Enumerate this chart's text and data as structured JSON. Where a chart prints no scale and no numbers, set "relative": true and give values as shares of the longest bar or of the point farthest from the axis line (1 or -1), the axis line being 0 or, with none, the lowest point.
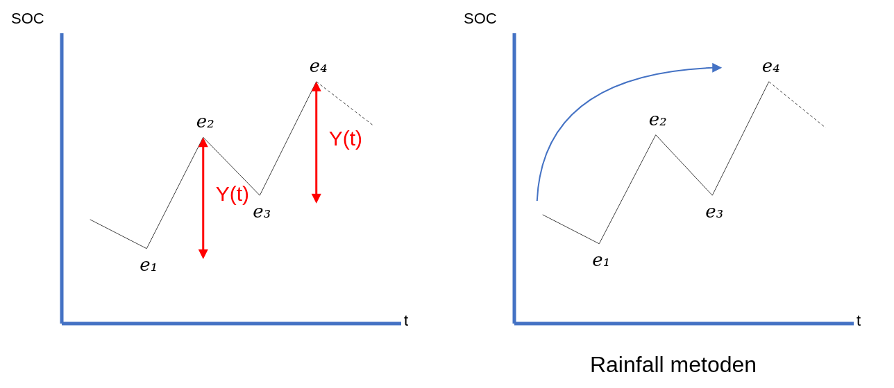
{
  "chart_data": [
    {
      "type": "line",
      "relative": true,
      "ylabel": "SOC",
      "xlabel": "t",
      "categories": [
        null,
        null,
        null,
        null,
        null,
        null
      ],
      "series": [
        {
          "color": "#404040",
          "line_style": "solid",
          "values": [
            0.43,
            0.31,
            0.77,
            0.53,
            1,
            null
          ]
        },
        {
          "color": "#404040",
          "line_style": "dashed",
          "values": [
            null,
            null,
            null,
            null,
            1,
            0.82
          ]
        }
      ],
      "annotations": [
        {
          "text": "e₁",
          "y": 0.31
        },
        {
          "text": "e₂",
          "y": 0.77
        },
        {
          "text": "e₃",
          "y": 0.53
        },
        {
          "text": "e₄",
          "y": 1
        },
        "Y(t)",
        "Y(t)"
      ]
    },
    {
      "type": "line",
      "relative": true,
      "ylabel": "SOC",
      "xlabel": "t",
      "title": "Rainfall metoden",
      "categories": [
        null,
        null,
        null,
        null,
        null,
        null
      ],
      "series": [
        {
          "color": "#404040",
          "line_style": "solid",
          "values": [
            0.45,
            0.33,
            0.78,
            0.53,
            1,
            null
          ]
        },
        {
          "color": "#404040",
          "line_style": "dashed",
          "values": [
            null,
            null,
            null,
            null,
            1,
            0.81
          ]
        }
      ],
      "annotations": [
        {
          "text": "e₁",
          "y": 0.33
        },
        {
          "text": "e₂",
          "y": 0.78
        },
        {
          "text": "e₃",
          "y": 0.53
        },
        {
          "text": "e₄",
          "y": 1
        }
      ]
    }
  ]
}
